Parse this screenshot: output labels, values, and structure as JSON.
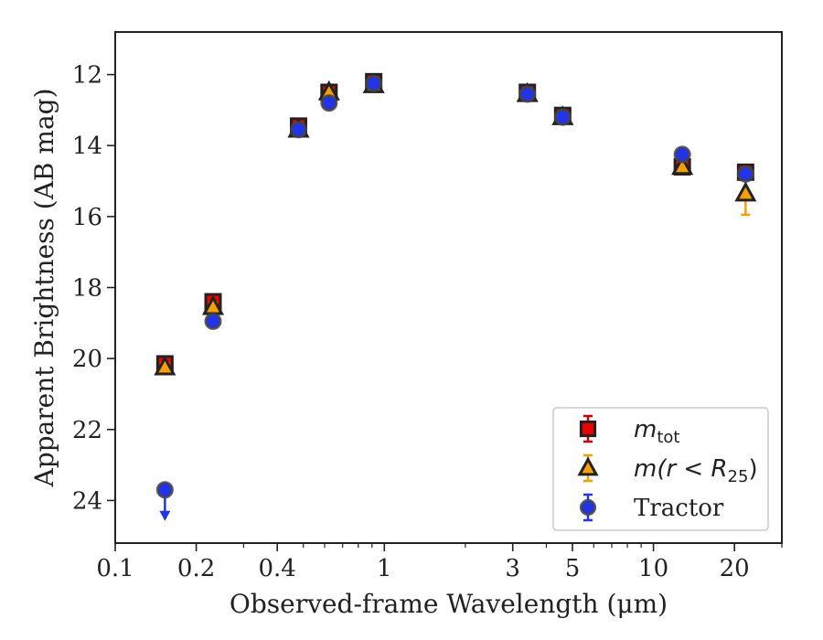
{
  "chart_data": {
    "type": "scatter",
    "x_scale": "log",
    "y_inverted": true,
    "xlim": [
      0.1,
      30
    ],
    "ylim": [
      25.2,
      10.8
    ],
    "xlabel": "Observed-frame Wavelength (μm)",
    "ylabel": "Apparent Brightness (AB mag)",
    "x_ticks": [
      {
        "value": 0.1,
        "label": "0.1"
      },
      {
        "value": 0.2,
        "label": "0.2"
      },
      {
        "value": 0.4,
        "label": "0.4"
      },
      {
        "value": 1,
        "label": "1"
      },
      {
        "value": 3,
        "label": "3"
      },
      {
        "value": 5,
        "label": "5"
      },
      {
        "value": 10,
        "label": "10"
      },
      {
        "value": 20,
        "label": "20"
      }
    ],
    "x_minor_ticks": [
      0.3,
      0.5,
      0.6,
      0.7,
      0.8,
      0.9,
      2,
      4,
      6,
      7,
      8,
      9,
      30
    ],
    "y_ticks": [
      12,
      14,
      16,
      18,
      20,
      22,
      24
    ],
    "grid": false,
    "legend_position": "lower-right",
    "series": [
      {
        "name": "m_tot",
        "legend_main": "m",
        "legend_sub": "tot",
        "marker": "square",
        "color": "#ee0000",
        "edge": "#222222",
        "errcolor": "#cc0000",
        "points": [
          {
            "x": 0.153,
            "y": 20.15,
            "err": 0.15
          },
          {
            "x": 0.231,
            "y": 18.4,
            "err": 0.15
          },
          {
            "x": 0.48,
            "y": 13.45,
            "err": 0.15
          },
          {
            "x": 0.623,
            "y": 12.5,
            "err": 0.15
          },
          {
            "x": 0.913,
            "y": 12.2,
            "err": 0.15
          },
          {
            "x": 3.4,
            "y": 12.5,
            "err": 0.1
          },
          {
            "x": 4.6,
            "y": 13.15,
            "err": 0.1
          },
          {
            "x": 12.8,
            "y": 14.6,
            "err": 0.12
          },
          {
            "x": 22.0,
            "y": 14.75,
            "err": 0.1
          }
        ]
      },
      {
        "name": "m(r < R_25)",
        "legend_main": "m(r < R",
        "legend_sub": "25",
        "legend_tail": ")",
        "marker": "triangle",
        "color": "#f5a000",
        "edge": "#222222",
        "errcolor": "#f5a000",
        "points": [
          {
            "x": 0.153,
            "y": 20.25,
            "err": 0.12
          },
          {
            "x": 0.231,
            "y": 18.55,
            "err": 0.12
          },
          {
            "x": 0.48,
            "y": 13.55,
            "err": 0.1
          },
          {
            "x": 0.623,
            "y": 12.5,
            "err": 0.1
          },
          {
            "x": 0.913,
            "y": 12.3,
            "err": 0.1
          },
          {
            "x": 3.4,
            "y": 12.55,
            "err": 0.1
          },
          {
            "x": 4.6,
            "y": 13.2,
            "err": 0.1
          },
          {
            "x": 12.8,
            "y": 14.6,
            "err": 0.12
          },
          {
            "x": 22.0,
            "y": 15.35,
            "err": 0.6
          }
        ]
      },
      {
        "name": "Tractor",
        "legend_main": "Tractor",
        "marker": "circle",
        "color": "#2233ee",
        "edge": "#444444",
        "errcolor": "#2233ee",
        "points": [
          {
            "x": 0.153,
            "y": 23.7,
            "err": 0,
            "upper_limit": true
          },
          {
            "x": 0.231,
            "y": 18.95,
            "err": 0.05
          },
          {
            "x": 0.48,
            "y": 13.55,
            "err": 0.05
          },
          {
            "x": 0.623,
            "y": 12.8,
            "err": 0.05
          },
          {
            "x": 0.913,
            "y": 12.25,
            "err": 0.05
          },
          {
            "x": 3.4,
            "y": 12.55,
            "err": 0.05
          },
          {
            "x": 4.6,
            "y": 13.2,
            "err": 0.05
          },
          {
            "x": 12.8,
            "y": 14.25,
            "err": 0.05
          },
          {
            "x": 22.0,
            "y": 14.8,
            "err": 0.05
          }
        ]
      }
    ]
  }
}
